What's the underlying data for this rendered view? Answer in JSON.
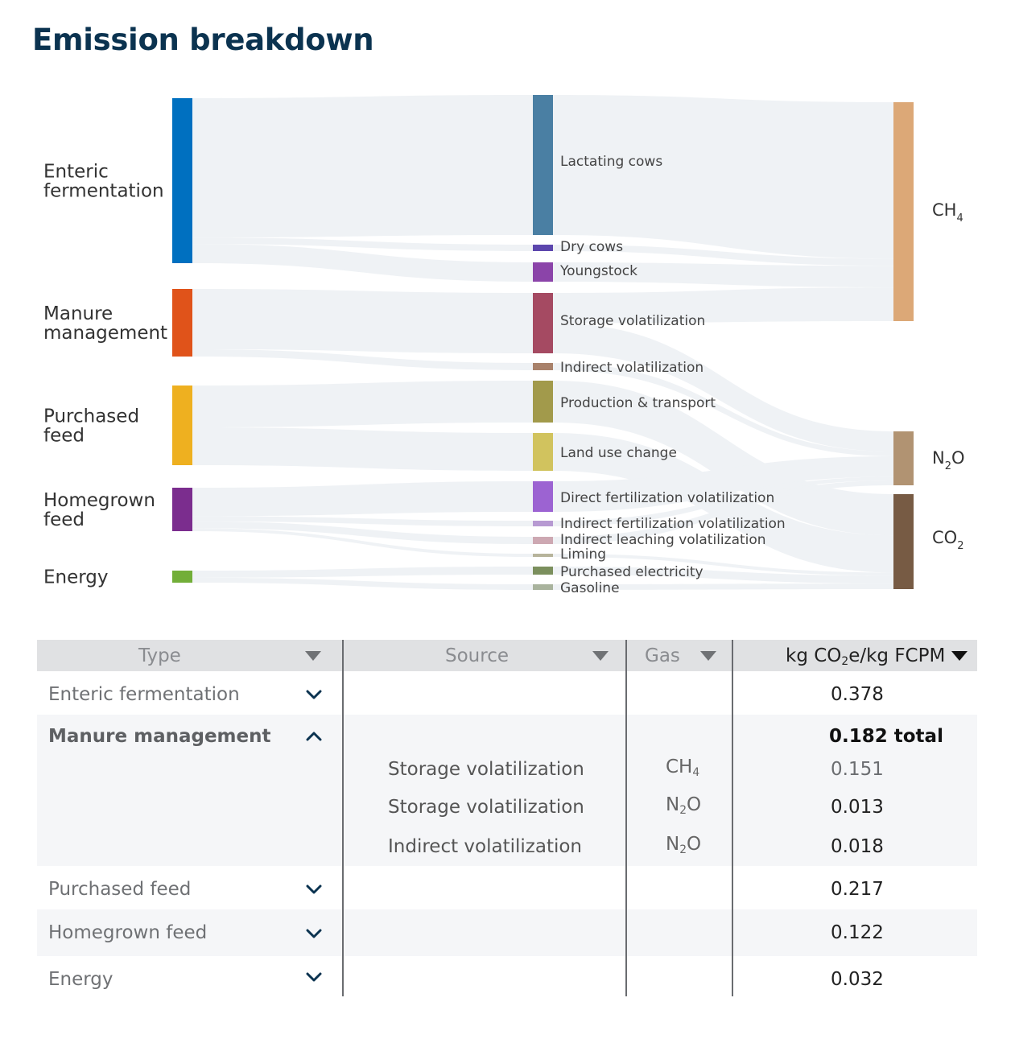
{
  "title": "Emission breakdown",
  "colors": {
    "link": "#eef1f4",
    "sources": [
      "#0070c0",
      "#e0531a",
      "#eeb020",
      "#7b2d8e",
      "#72ae38"
    ],
    "gases": {
      "CH4": "#dca877",
      "N2O": "#b19372",
      "CO2": "#775b44"
    }
  },
  "chart_data": {
    "type": "sankey",
    "unit": "kg CO2e/kg FCPM",
    "sources": [
      {
        "name": "Enteric fermentation",
        "lines": [
          "Enteric",
          "fermentation"
        ],
        "value": 0.378
      },
      {
        "name": "Manure management",
        "lines": [
          "Manure",
          "management"
        ],
        "value": 0.182
      },
      {
        "name": "Purchased feed",
        "lines": [
          "Purchased",
          "feed"
        ],
        "value": 0.217
      },
      {
        "name": "Homegrown feed",
        "lines": [
          "Homegrown",
          "feed"
        ],
        "value": 0.122
      },
      {
        "name": "Energy",
        "lines": [
          "Energy"
        ],
        "value": 0.032
      }
    ],
    "activities": [
      {
        "name": "Lactating cows",
        "color": "#4a7fa3"
      },
      {
        "name": "Dry cows",
        "color": "#5c46ad"
      },
      {
        "name": "Youngstock",
        "color": "#8b44a9"
      },
      {
        "name": "Storage volatilization",
        "color": "#a54a62"
      },
      {
        "name": "Indirect volatilization",
        "color": "#a8816a"
      },
      {
        "name": "Production & transport",
        "color": "#a29a4b"
      },
      {
        "name": "Land use change",
        "color": "#d1c35e"
      },
      {
        "name": "Direct fertilization volatilization",
        "color": "#9c63d2"
      },
      {
        "name": "Indirect fertilization volatilization",
        "color": "#b79ad2"
      },
      {
        "name": "Indirect leaching volatilization",
        "color": "#cda8b2"
      },
      {
        "name": "Liming",
        "color": "#b7b49b"
      },
      {
        "name": "Purchased electricity",
        "color": "#7b8f5d"
      },
      {
        "name": "Gasoline",
        "color": "#a9b39d"
      }
    ],
    "gases": [
      {
        "key": "CH4",
        "base": "CH",
        "sub": "4"
      },
      {
        "key": "N2O",
        "base": "N",
        "sub": "2",
        "rest": "O"
      },
      {
        "key": "CO2",
        "base": "CO",
        "sub": "2"
      }
    ],
    "links_source_activity": [
      [
        "Enteric fermentation",
        "Lactating cows"
      ],
      [
        "Enteric fermentation",
        "Dry cows"
      ],
      [
        "Enteric fermentation",
        "Youngstock"
      ],
      [
        "Manure management",
        "Storage volatilization"
      ],
      [
        "Manure management",
        "Indirect volatilization"
      ],
      [
        "Purchased feed",
        "Production & transport"
      ],
      [
        "Purchased feed",
        "Land use change"
      ],
      [
        "Homegrown feed",
        "Direct fertilization volatilization"
      ],
      [
        "Homegrown feed",
        "Indirect fertilization volatilization"
      ],
      [
        "Homegrown feed",
        "Indirect leaching volatilization"
      ],
      [
        "Homegrown feed",
        "Liming"
      ],
      [
        "Energy",
        "Purchased electricity"
      ],
      [
        "Energy",
        "Gasoline"
      ]
    ],
    "links_activity_gas": [
      [
        "Lactating cows",
        "CH4"
      ],
      [
        "Dry cows",
        "CH4"
      ],
      [
        "Youngstock",
        "CH4"
      ],
      [
        "Storage volatilization",
        "CH4"
      ],
      [
        "Storage volatilization",
        "N2O"
      ],
      [
        "Indirect volatilization",
        "N2O"
      ],
      [
        "Production & transport",
        "CO2"
      ],
      [
        "Land use change",
        "CO2"
      ],
      [
        "Direct fertilization volatilization",
        "N2O"
      ],
      [
        "Indirect fertilization volatilization",
        "N2O"
      ],
      [
        "Indirect leaching volatilization",
        "N2O"
      ],
      [
        "Liming",
        "CO2"
      ],
      [
        "Purchased electricity",
        "CO2"
      ],
      [
        "Gasoline",
        "CO2"
      ]
    ]
  },
  "table": {
    "headers": {
      "type": "Type",
      "source": "Source",
      "gas": "Gas",
      "value_pre": "kg CO",
      "value_sub": "2",
      "value_post": "e/kg FCPM"
    },
    "sort_column": "value",
    "rows": [
      {
        "type": "Enteric fermentation",
        "value": "0.378",
        "expanded": false
      },
      {
        "type": "Manure management",
        "value": "0.182 total",
        "expanded": true,
        "details": [
          {
            "source": "Storage volatilization",
            "gas_base": "CH",
            "gas_sub": "4",
            "gas_rest": "",
            "value": "0.151"
          },
          {
            "source": "Storage volatilization",
            "gas_base": "N",
            "gas_sub": "2",
            "gas_rest": "O",
            "value": "0.013"
          },
          {
            "source": "Indirect volatilization",
            "gas_base": "N",
            "gas_sub": "2",
            "gas_rest": "O",
            "value": "0.018"
          }
        ]
      },
      {
        "type": "Purchased feed",
        "value": "0.217",
        "expanded": false
      },
      {
        "type": "Homegrown feed",
        "value": "0.122",
        "expanded": false
      },
      {
        "type": "Energy",
        "value": "0.032",
        "expanded": false
      }
    ]
  }
}
